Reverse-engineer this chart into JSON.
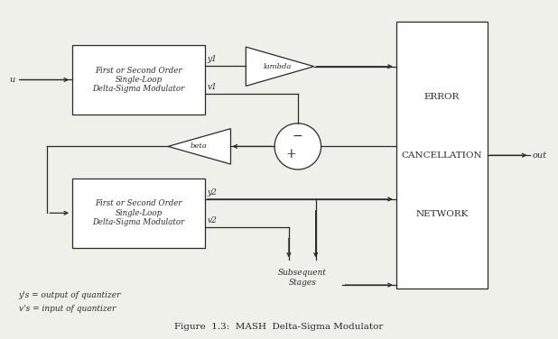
{
  "bg_color": "#f0f0eb",
  "line_color": "#2a2a2a",
  "box_color": "#ffffff",
  "title": "Figure  1.3:  MASH  Delta-Sigma Modulator",
  "box1_text": "First or Second Order\nSingle-Loop\nDelta-Sigma Modulator",
  "box2_text": "First or Second Order\nSingle-Loop\nDelta-Sigma Modulator",
  "ecn_text": "ERROR\n\nCANCELLATION\n\nNETWORK",
  "note1": "y's = output of quantizer",
  "note2": "v's = input of quantizer",
  "subsequent_label": "Subsequent\nStages"
}
